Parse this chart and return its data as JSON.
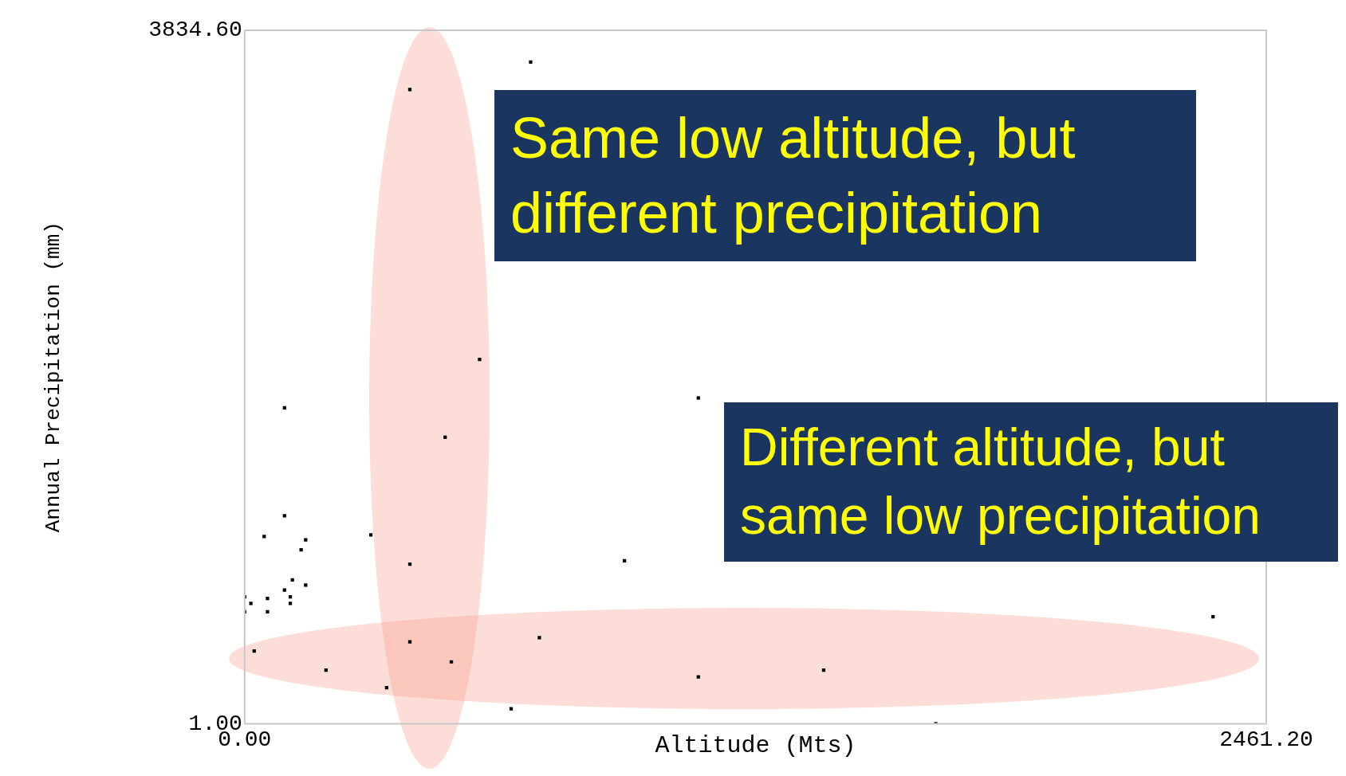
{
  "chart_data": {
    "type": "scatter",
    "xlabel": "Altitude (Mts)",
    "ylabel": "Annual Precipitation (mm)",
    "xlim": [
      0,
      2461.2
    ],
    "xticks": [
      {
        "value": 0,
        "label": "0.00"
      },
      {
        "value": 2461.2,
        "label": "2461.20"
      }
    ],
    "ylim": [
      1,
      3834.6
    ],
    "yticks": [
      {
        "value": 1,
        "label": "1.00"
      },
      {
        "value": 3834.6,
        "label": "3834.60"
      }
    ],
    "legend": false,
    "marker": "square",
    "annotations": [
      "Same low altitude, but different precipitation",
      "Different altitude, but same low precipitation"
    ],
    "series": [
      {
        "color": "#000000",
        "x": [
          689,
          398,
          566,
          96,
          1093,
          483,
          96,
          47,
          304,
          147,
          136,
          398,
          915,
          115,
          147,
          96,
          0,
          55,
          110,
          15,
          110,
          0,
          55,
          23,
          398,
          710,
          498,
          196,
          2333,
          1395,
          1093,
          342,
          642,
          1665
        ],
        "values": [
          3659,
          3507,
          2015,
          1747,
          1802,
          1585,
          1151,
          1036,
          1045,
          1017,
          962,
          883,
          902,
          796,
          768,
          740,
          703,
          694,
          703,
          666,
          666,
          620,
          620,
          403,
          454,
          477,
          343,
          297,
          592,
          297,
          260,
          200,
          84,
          1
        ]
      }
    ]
  }
}
